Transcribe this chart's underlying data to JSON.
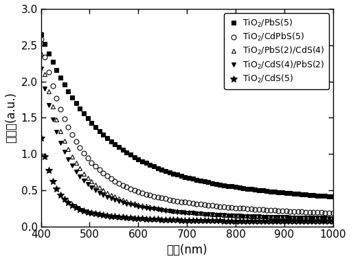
{
  "title": "",
  "xlabel": "波长(nm)",
  "ylabel": "吸光度(a.u.)",
  "xlim": [
    400,
    1000
  ],
  "ylim": [
    0.0,
    3.0
  ],
  "xticks": [
    400,
    500,
    600,
    700,
    800,
    900,
    1000
  ],
  "yticks": [
    0.0,
    0.5,
    1.0,
    1.5,
    2.0,
    2.5,
    3.0
  ],
  "series": [
    {
      "label": "TiO$_2$/PbS(5)",
      "marker": "s",
      "fillstyle": "full",
      "peak_val": 2.65,
      "decay1": 0.009,
      "decay2": 0.002,
      "asymptote": 0.22,
      "transition": 500
    },
    {
      "label": "TiO$_2$/CdPbS(5)",
      "marker": "o",
      "fillstyle": "none",
      "peak_val": 2.58,
      "decay1": 0.016,
      "decay2": 0.004,
      "asymptote": 0.13,
      "transition": 480
    },
    {
      "label": "TiO$_2$/PbS(2)/CdS(4)",
      "marker": "^",
      "fillstyle": "none",
      "peak_val": 2.38,
      "decay1": 0.02,
      "decay2": 0.006,
      "asymptote": 0.1,
      "transition": 470
    },
    {
      "label": "TiO$_2$/CdS(4)/PbS(2)",
      "marker": "v",
      "fillstyle": "full",
      "peak_val": 2.18,
      "decay1": 0.022,
      "decay2": 0.006,
      "asymptote": 0.1,
      "transition": 460
    },
    {
      "label": "TiO$_2$/CdS(5)",
      "marker": "*",
      "fillstyle": "full",
      "peak_val": 1.22,
      "decay1": 0.04,
      "decay2": 0.01,
      "asymptote": 0.07,
      "transition": 450
    }
  ],
  "markers": [
    "s",
    "o",
    "^",
    "v",
    "*"
  ],
  "fillstyles": [
    "full",
    "none",
    "none",
    "full",
    "full"
  ],
  "markersizes": [
    4,
    5,
    5,
    5,
    7
  ],
  "marker_every": 8,
  "background_color": "white",
  "font_size": 11,
  "legend_fontsize": 9
}
